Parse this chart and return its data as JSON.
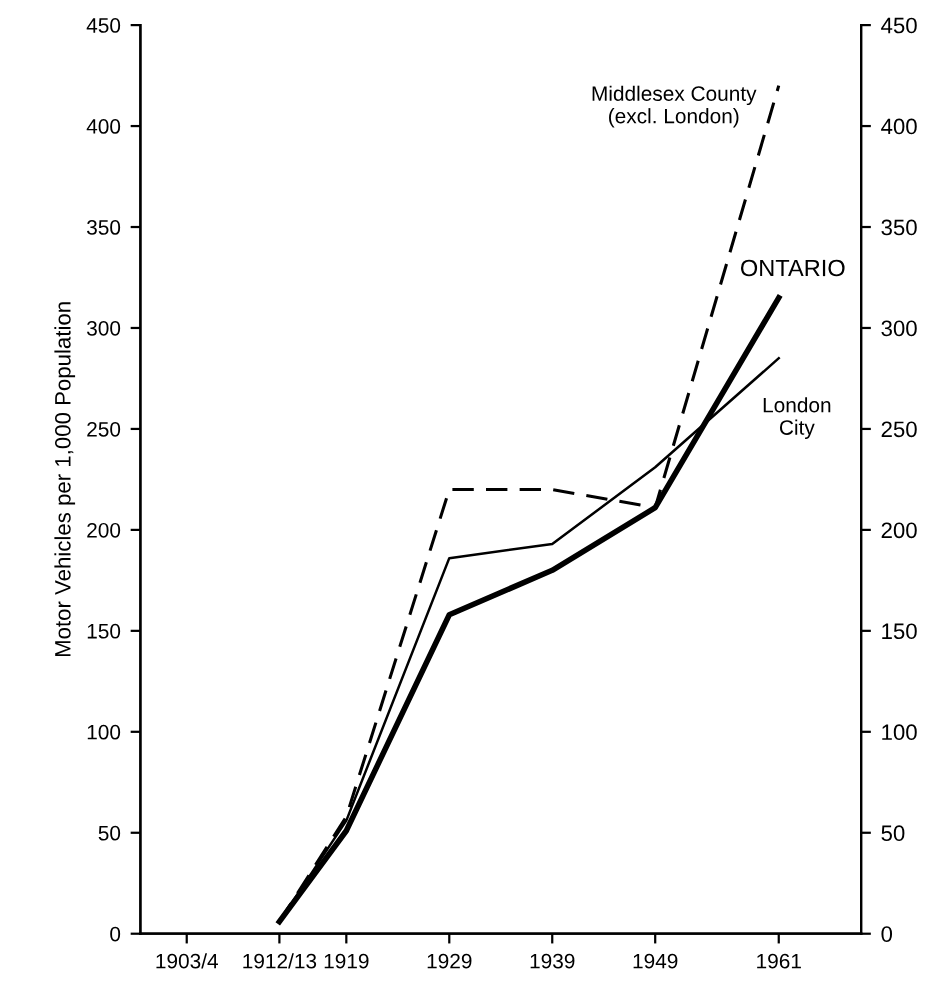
{
  "chart_data": {
    "type": "line",
    "ylabel": "Motor Vehicles per 1,000 Population",
    "xlim": [
      1899,
      1969
    ],
    "xticks": [
      {
        "value": 1903.5,
        "label": "1903/4"
      },
      {
        "value": 1912.5,
        "label": "1912/13"
      },
      1919,
      1929,
      1939,
      1949,
      1961
    ],
    "ylim": [
      0,
      450
    ],
    "yticks": [
      0,
      50,
      100,
      150,
      200,
      250,
      300,
      350,
      400,
      450
    ],
    "y2lim": [
      0,
      450
    ],
    "y2ticks": [
      0,
      50,
      100,
      150,
      200,
      250,
      300,
      350,
      400,
      450
    ],
    "grid": false,
    "legend": false,
    "marker": "none",
    "series": [
      {
        "name": "Middlesex County\n(excl. London)",
        "color": "#000000",
        "line_style": "dashed",
        "x": [
          1912.5,
          1919,
          1929,
          1939,
          1949,
          1961
        ],
        "values": [
          6,
          58,
          220,
          220,
          211,
          420
        ]
      },
      {
        "name": "ONTARIO",
        "color": "#000000",
        "line_style": "solid",
        "x": [
          1912.5,
          1919,
          1929,
          1939,
          1949,
          1961
        ],
        "values": [
          6,
          51,
          158,
          180,
          211,
          315
        ]
      },
      {
        "name": "London\nCity",
        "color": "#000000",
        "line_style": "solid",
        "x": [
          1912.5,
          1919,
          1929,
          1939,
          1949,
          1961
        ],
        "values": [
          6,
          56,
          186,
          193,
          231,
          285
        ]
      }
    ]
  }
}
